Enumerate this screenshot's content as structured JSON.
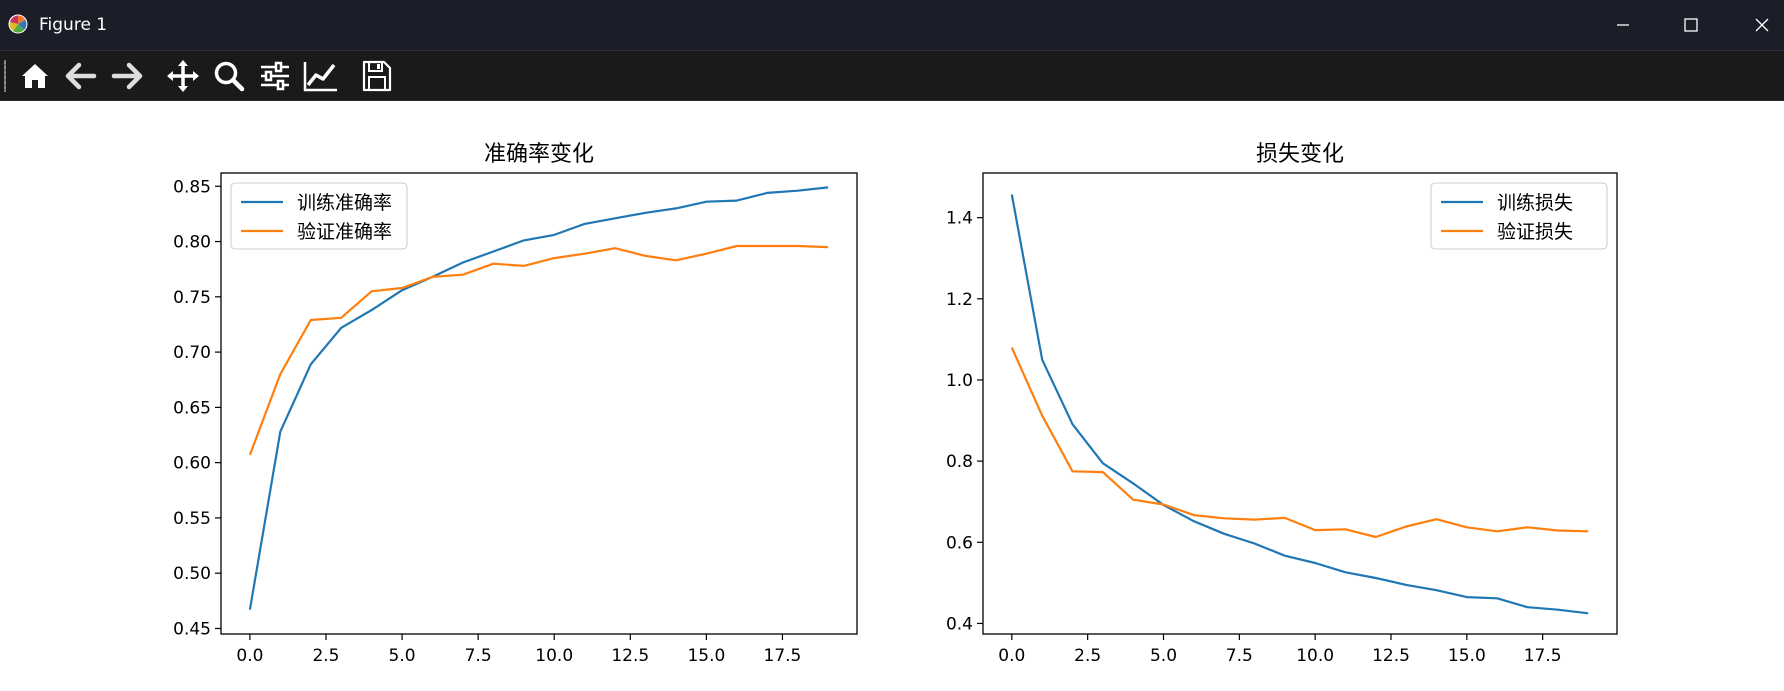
{
  "window": {
    "title": "Figure 1"
  },
  "toolbar": {
    "tools": [
      "home-icon",
      "back-icon",
      "forward-icon",
      "pan-icon",
      "zoom-icon",
      "configure-subplots-icon",
      "edit-axis-icon",
      "save-icon"
    ]
  },
  "colors": {
    "train": "#1f77b4",
    "val": "#ff7f0e",
    "titlebar": "#1b1e28",
    "toolbar": "#1a1a1a"
  },
  "chart_data": [
    {
      "type": "line",
      "title": "准确率变化",
      "xlabel": "",
      "ylabel": "",
      "x": [
        0,
        1,
        2,
        3,
        4,
        5,
        6,
        7,
        8,
        9,
        10,
        11,
        12,
        13,
        14,
        15,
        16,
        17,
        18,
        19
      ],
      "xlim": [
        -0.95,
        19.95
      ],
      "ylim": [
        0.445,
        0.862
      ],
      "xticks": [
        0.0,
        2.5,
        5.0,
        7.5,
        10.0,
        12.5,
        15.0,
        17.5
      ],
      "xtick_labels": [
        "0.0",
        "2.5",
        "5.0",
        "7.5",
        "10.0",
        "12.5",
        "15.0",
        "17.5"
      ],
      "yticks": [
        0.45,
        0.5,
        0.55,
        0.6,
        0.65,
        0.7,
        0.75,
        0.8,
        0.85
      ],
      "ytick_labels": [
        "0.45",
        "0.50",
        "0.55",
        "0.60",
        "0.65",
        "0.70",
        "0.75",
        "0.80",
        "0.85"
      ],
      "legend_position": "upper-left",
      "series": [
        {
          "name": "训练准确率",
          "color": "#1f77b4",
          "values": [
            0.467,
            0.628,
            0.689,
            0.722,
            0.738,
            0.756,
            0.768,
            0.781,
            0.791,
            0.801,
            0.806,
            0.816,
            0.821,
            0.826,
            0.83,
            0.836,
            0.837,
            0.844,
            0.846,
            0.849
          ]
        },
        {
          "name": "验证准确率",
          "color": "#ff7f0e",
          "values": [
            0.607,
            0.68,
            0.729,
            0.731,
            0.755,
            0.758,
            0.768,
            0.77,
            0.78,
            0.778,
            0.785,
            0.789,
            0.794,
            0.787,
            0.783,
            0.789,
            0.796,
            0.796,
            0.796,
            0.795
          ]
        }
      ]
    },
    {
      "type": "line",
      "title": "损失变化",
      "xlabel": "",
      "ylabel": "",
      "x": [
        0,
        1,
        2,
        3,
        4,
        5,
        6,
        7,
        8,
        9,
        10,
        11,
        12,
        13,
        14,
        15,
        16,
        17,
        18,
        19
      ],
      "xlim": [
        -0.95,
        19.95
      ],
      "ylim": [
        0.374,
        1.51
      ],
      "xticks": [
        0.0,
        2.5,
        5.0,
        7.5,
        10.0,
        12.5,
        15.0,
        17.5
      ],
      "xtick_labels": [
        "0.0",
        "2.5",
        "5.0",
        "7.5",
        "10.0",
        "12.5",
        "15.0",
        "17.5"
      ],
      "yticks": [
        0.4,
        0.6,
        0.8,
        1.0,
        1.2,
        1.4
      ],
      "ytick_labels": [
        "0.4",
        "0.6",
        "0.8",
        "1.0",
        "1.2",
        "1.4"
      ],
      "legend_position": "upper-right",
      "series": [
        {
          "name": "训练损失",
          "color": "#1f77b4",
          "values": [
            1.457,
            1.05,
            0.891,
            0.795,
            0.745,
            0.692,
            0.652,
            0.621,
            0.597,
            0.567,
            0.549,
            0.526,
            0.512,
            0.495,
            0.482,
            0.465,
            0.462,
            0.44,
            0.434,
            0.425
          ]
        },
        {
          "name": "验证损失",
          "color": "#ff7f0e",
          "values": [
            1.08,
            0.912,
            0.775,
            0.773,
            0.705,
            0.693,
            0.667,
            0.659,
            0.656,
            0.66,
            0.63,
            0.632,
            0.613,
            0.639,
            0.657,
            0.637,
            0.627,
            0.637,
            0.629,
            0.627
          ]
        }
      ]
    }
  ]
}
